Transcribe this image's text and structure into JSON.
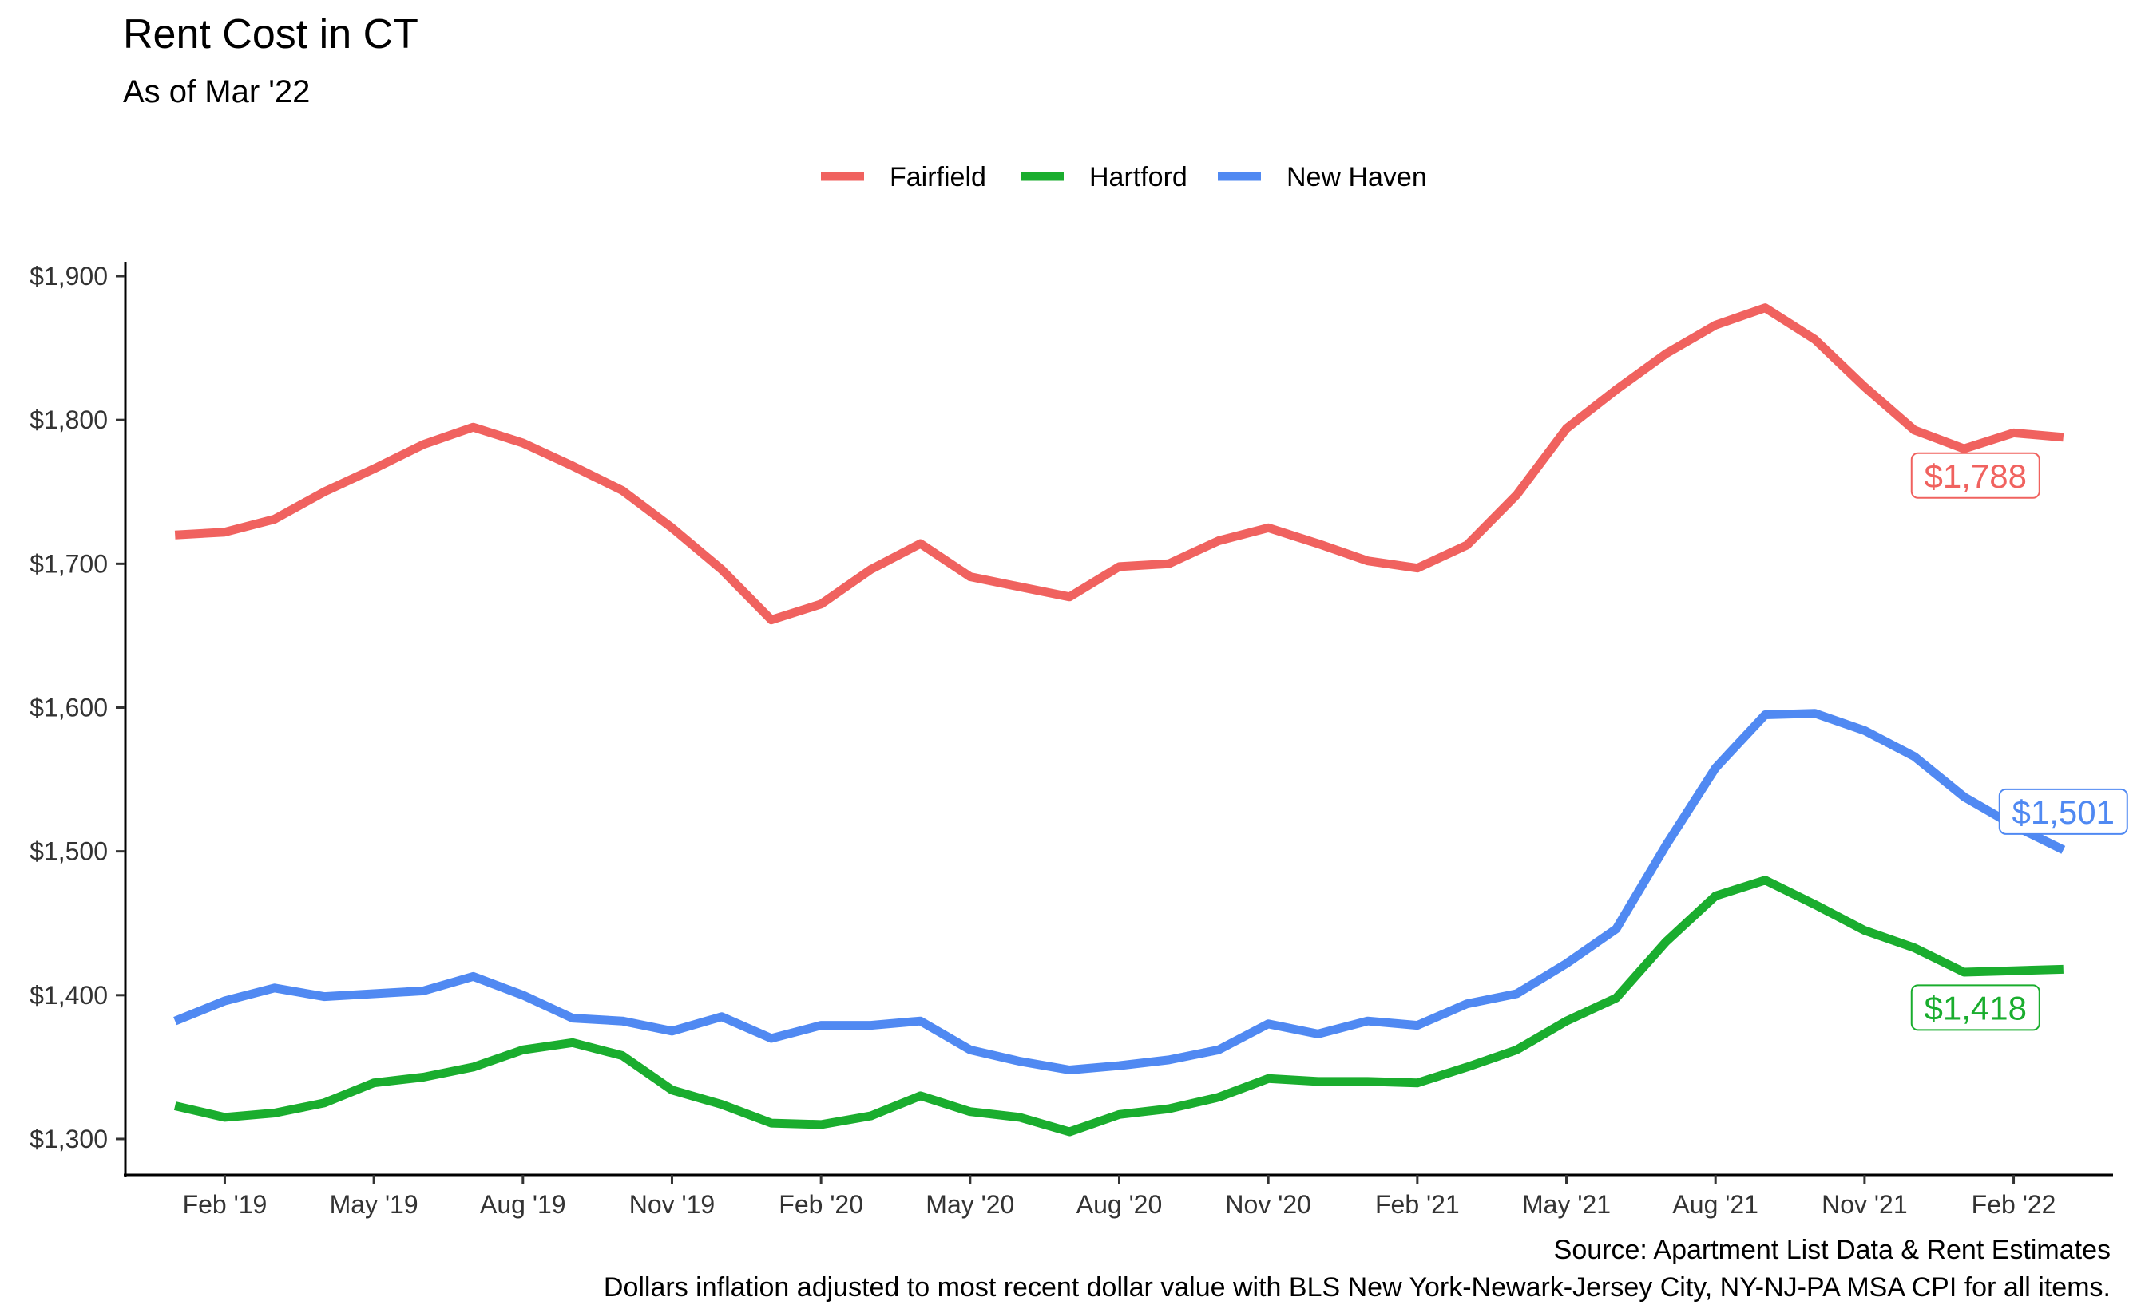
{
  "chart_data": {
    "type": "line",
    "title": "Rent Cost in CT",
    "subtitle": "As of Mar '22",
    "x": [
      "2019-01",
      "2019-02",
      "2019-03",
      "2019-04",
      "2019-05",
      "2019-06",
      "2019-07",
      "2019-08",
      "2019-09",
      "2019-10",
      "2019-11",
      "2019-12",
      "2020-01",
      "2020-02",
      "2020-03",
      "2020-04",
      "2020-05",
      "2020-06",
      "2020-07",
      "2020-08",
      "2020-09",
      "2020-10",
      "2020-11",
      "2020-12",
      "2021-01",
      "2021-02",
      "2021-03",
      "2021-04",
      "2021-05",
      "2021-06",
      "2021-07",
      "2021-08",
      "2021-09",
      "2021-10",
      "2021-11",
      "2021-12",
      "2022-01",
      "2022-02",
      "2022-03"
    ],
    "x_ticks": [
      {
        "value": "2019-02",
        "label": "Feb '19"
      },
      {
        "value": "2019-05",
        "label": "May '19"
      },
      {
        "value": "2019-08",
        "label": "Aug '19"
      },
      {
        "value": "2019-11",
        "label": "Nov '19"
      },
      {
        "value": "2020-02",
        "label": "Feb '20"
      },
      {
        "value": "2020-05",
        "label": "May '20"
      },
      {
        "value": "2020-08",
        "label": "Aug '20"
      },
      {
        "value": "2020-11",
        "label": "Nov '20"
      },
      {
        "value": "2021-02",
        "label": "Feb '21"
      },
      {
        "value": "2021-05",
        "label": "May '21"
      },
      {
        "value": "2021-08",
        "label": "Aug '21"
      },
      {
        "value": "2021-11",
        "label": "Nov '21"
      },
      {
        "value": "2022-02",
        "label": "Feb '22"
      }
    ],
    "y_ticks": [
      {
        "value": 1300,
        "label": "$1,300"
      },
      {
        "value": 1400,
        "label": "$1,400"
      },
      {
        "value": 1500,
        "label": "$1,500"
      },
      {
        "value": 1600,
        "label": "$1,600"
      },
      {
        "value": 1700,
        "label": "$1,700"
      },
      {
        "value": 1800,
        "label": "$1,800"
      },
      {
        "value": 1900,
        "label": "$1,900"
      }
    ],
    "ylim": [
      1275,
      1910
    ],
    "xlim": [
      "2018-12",
      "2022-04"
    ],
    "grid": false,
    "legend_position": "top",
    "series": [
      {
        "name": "Fairfield",
        "color": "#f0625f",
        "end_label": "$1,788",
        "values": [
          1720,
          1722,
          1731,
          1750,
          1766,
          1783,
          1795,
          1784,
          1768,
          1751,
          1725,
          1696,
          1661,
          1672,
          1696,
          1714,
          1691,
          1684,
          1677,
          1698,
          1700,
          1716,
          1725,
          1714,
          1702,
          1697,
          1713,
          1748,
          1794,
          1821,
          1846,
          1866,
          1878,
          1856,
          1823,
          1793,
          1780,
          1791,
          1788
        ]
      },
      {
        "name": "Hartford",
        "color": "#1aad2e",
        "end_label": "$1,418",
        "values": [
          1323,
          1315,
          1318,
          1325,
          1339,
          1343,
          1350,
          1362,
          1367,
          1358,
          1334,
          1324,
          1311,
          1310,
          1316,
          1330,
          1319,
          1315,
          1305,
          1317,
          1321,
          1329,
          1342,
          1340,
          1340,
          1339,
          1350,
          1362,
          1382,
          1398,
          1437,
          1469,
          1480,
          1463,
          1445,
          1433,
          1416,
          1417,
          1418
        ]
      },
      {
        "name": "New Haven",
        "color": "#5089f2",
        "end_label": "$1,501",
        "values": [
          1382,
          1396,
          1405,
          1399,
          1401,
          1403,
          1413,
          1400,
          1384,
          1382,
          1375,
          1385,
          1370,
          1379,
          1379,
          1382,
          1362,
          1354,
          1348,
          1351,
          1355,
          1362,
          1380,
          1373,
          1382,
          1379,
          1394,
          1401,
          1422,
          1446,
          1504,
          1558,
          1595,
          1596,
          1584,
          1566,
          1538,
          1518,
          1501
        ]
      }
    ],
    "caption_lines": [
      "Source: Apartment List Data & Rent Estimates",
      "Dollars inflation adjusted to most recent dollar value with BLS New York-Newark-Jersey City, NY-NJ-PA MSA CPI for all items."
    ]
  }
}
